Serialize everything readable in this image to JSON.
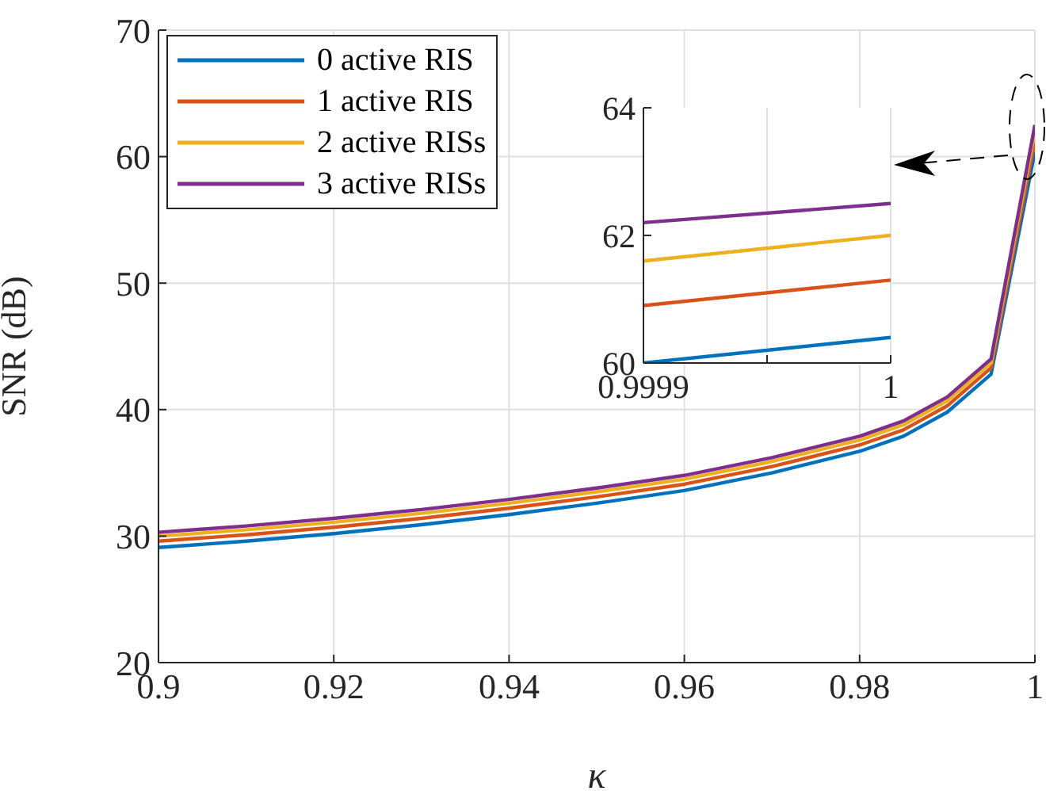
{
  "chart_data": [
    {
      "type": "line",
      "xlabel": "κ",
      "ylabel": "SNR (dB)",
      "x": [
        0.9,
        0.91,
        0.92,
        0.93,
        0.94,
        0.95,
        0.96,
        0.97,
        0.98,
        0.985,
        0.99,
        0.995,
        1
      ],
      "xlim": [
        0.9,
        1
      ],
      "xticks": [
        0.9,
        0.92,
        0.94,
        0.96,
        0.98,
        1
      ],
      "ylim": [
        20,
        70
      ],
      "yticks": [
        20,
        30,
        40,
        50,
        60,
        70
      ],
      "grid": true,
      "legend": "top left",
      "line_style": "solid",
      "series": [
        {
          "name": "0 active RIS",
          "color": "#0072bd",
          "values": [
            29.1,
            29.6,
            30.2,
            30.9,
            31.7,
            32.6,
            33.6,
            35.0,
            36.7,
            37.9,
            39.8,
            42.8,
            60.4
          ]
        },
        {
          "name": "1 active RIS",
          "color": "#d95319",
          "values": [
            29.6,
            30.1,
            30.7,
            31.4,
            32.2,
            33.1,
            34.1,
            35.5,
            37.2,
            38.4,
            40.3,
            43.3,
            61.3
          ]
        },
        {
          "name": "2 active RISs",
          "color": "#edb120",
          "values": [
            30.0,
            30.5,
            31.1,
            31.8,
            32.6,
            33.5,
            34.5,
            35.9,
            37.6,
            38.8,
            40.7,
            43.7,
            62.0
          ]
        },
        {
          "name": "3 active RISs",
          "color": "#7e2f8e",
          "values": [
            30.3,
            30.8,
            31.4,
            32.1,
            32.9,
            33.8,
            34.8,
            36.2,
            37.9,
            39.1,
            41.0,
            44.0,
            62.5
          ]
        }
      ]
    },
    {
      "type": "line",
      "x": [
        0.9999,
        1
      ],
      "xlim": [
        0.9999,
        1
      ],
      "xticks": [
        0.9999,
        {
          "value": 0.99995,
          "label": null
        },
        1
      ],
      "ylim": [
        60,
        64
      ],
      "yticks": [
        60,
        62,
        64
      ],
      "grid": "x",
      "line_style": "solid",
      "series": [
        {
          "color": "#0072bd",
          "values": [
            60.0,
            60.4
          ]
        },
        {
          "color": "#d95319",
          "values": [
            60.9,
            61.3
          ]
        },
        {
          "color": "#edb120",
          "values": [
            61.6,
            62.0
          ]
        },
        {
          "color": "#7e2f8e",
          "values": [
            62.2,
            62.5
          ]
        }
      ]
    }
  ]
}
